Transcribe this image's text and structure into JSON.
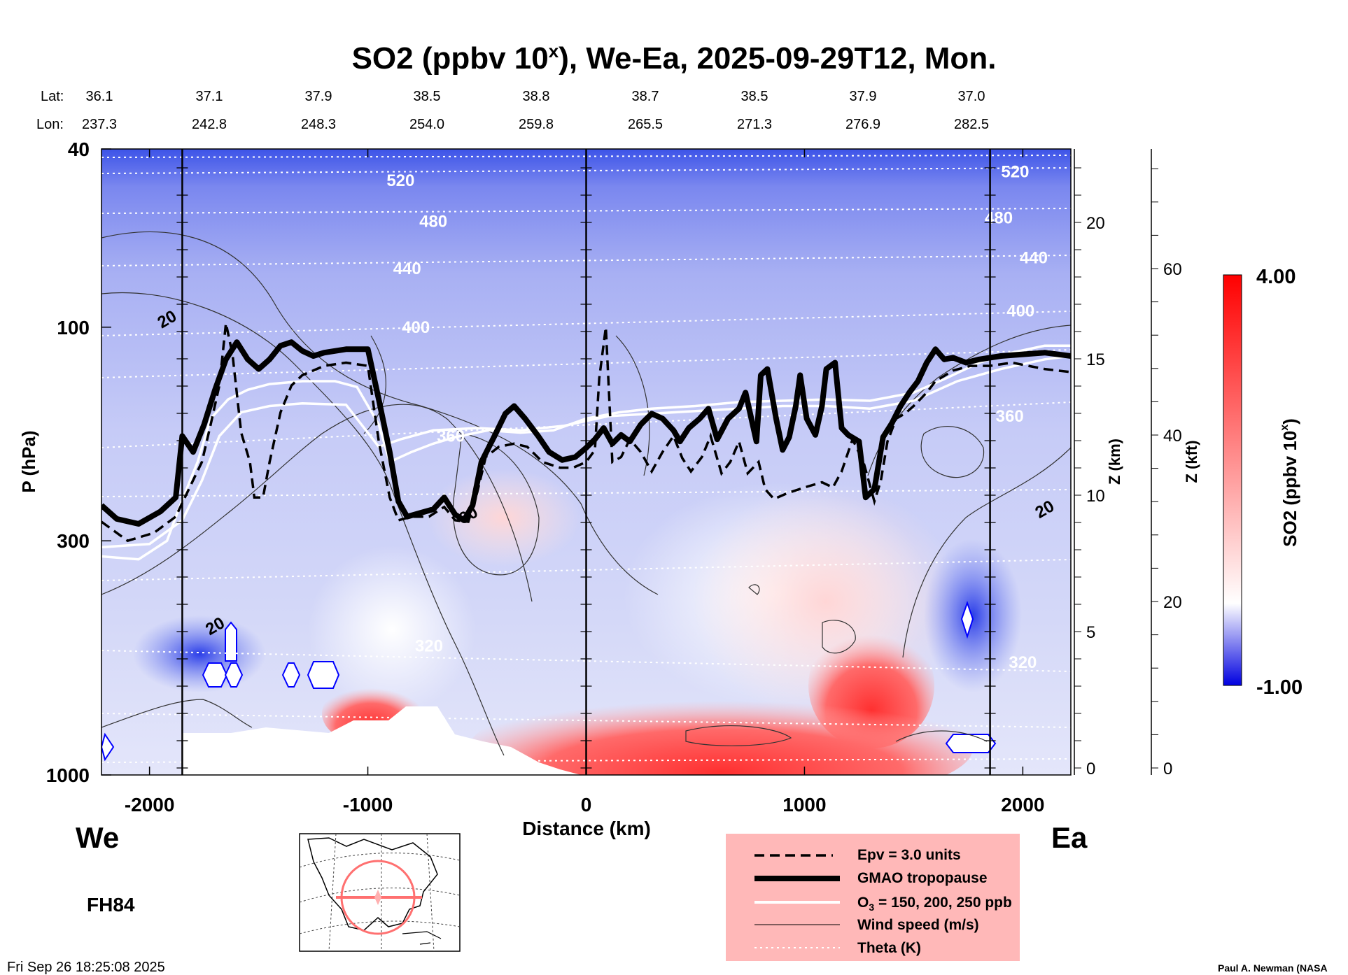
{
  "chart_data": {
    "type": "heatmap",
    "title": "SO2 (ppbv 10",
    "title_sup": "x",
    "title_rest": "), We-Ea, 2025-09-29T12, Mon.",
    "lat_label": "Lat:",
    "lon_label": "Lon:",
    "lat_values": [
      "36.1",
      "37.1",
      "37.9",
      "38.5",
      "38.8",
      "38.7",
      "38.5",
      "37.9",
      "37.0"
    ],
    "lon_values": [
      "237.3",
      "242.8",
      "248.3",
      "254.0",
      "259.8",
      "265.5",
      "271.3",
      "276.9",
      "282.5"
    ],
    "xlabel": "Distance (km)",
    "xlim": [
      -2220,
      2220
    ],
    "x_ticks": [
      -2000,
      -1000,
      0,
      1000,
      2000
    ],
    "x_tick_labels": [
      "-2000",
      "-1000",
      "0",
      "1000",
      "2000"
    ],
    "ylabel": "P (hPa)",
    "y_scale": "log",
    "ylim": [
      1000,
      40
    ],
    "y_ticks": [
      40,
      100,
      300,
      1000
    ],
    "y_tick_labels": [
      "40",
      "100",
      "300",
      "1000"
    ],
    "z_km_label": "Z (km)",
    "z_km_ticks": [
      0,
      5,
      10,
      15,
      20
    ],
    "z_km_tick_labels": [
      "0",
      "5",
      "10",
      "15",
      "20"
    ],
    "z_kft_label": "Z (kft)",
    "z_kft_ticks": [
      0,
      20,
      40,
      60
    ],
    "z_kft_tick_labels": [
      "0",
      "20",
      "40",
      "60"
    ],
    "colorbar_label": "SO2 (ppbv 10",
    "colorbar_label_sup": "x",
    "colorbar_label_rest": ")",
    "colorbar_range": [
      -1.0,
      4.0
    ],
    "colorbar_max_label": "4.00",
    "colorbar_min_label": "-1.00",
    "colormap": [
      "#0000e0",
      "#ffffff",
      "#ff0000"
    ],
    "vertical_lines_km": [
      -1850,
      0,
      1850
    ],
    "theta_labels": [
      {
        "text": "520",
        "km": -850,
        "hpa": 47
      },
      {
        "text": "480",
        "km": -700,
        "hpa": 58
      },
      {
        "text": "440",
        "km": -820,
        "hpa": 74
      },
      {
        "text": "400",
        "km": -780,
        "hpa": 100
      },
      {
        "text": "360",
        "km": -620,
        "hpa": 175
      },
      {
        "text": "320",
        "km": -720,
        "hpa": 515
      },
      {
        "text": "520",
        "km": 1965,
        "hpa": 45
      },
      {
        "text": "480",
        "km": 1890,
        "hpa": 57
      },
      {
        "text": "440",
        "km": 2050,
        "hpa": 70
      },
      {
        "text": "400",
        "km": 1990,
        "hpa": 92
      },
      {
        "text": "360",
        "km": 1940,
        "hpa": 158
      },
      {
        "text": "320",
        "km": 2000,
        "hpa": 560
      }
    ],
    "wind_labels": [
      {
        "text": "20",
        "km": -1920,
        "hpa": 96
      },
      {
        "text": "20",
        "km": -1700,
        "hpa": 465
      },
      {
        "text": "60",
        "km": -540,
        "hpa": 263
      },
      {
        "text": "20",
        "km": 2100,
        "hpa": 255
      }
    ],
    "tropopause_gmao": [
      [
        -2220,
        250
      ],
      [
        -2150,
        268
      ],
      [
        -2050,
        275
      ],
      [
        -1950,
        258
      ],
      [
        -1880,
        240
      ],
      [
        -1850,
        175
      ],
      [
        -1800,
        190
      ],
      [
        -1750,
        165
      ],
      [
        -1700,
        138
      ],
      [
        -1650,
        118
      ],
      [
        -1600,
        108
      ],
      [
        -1550,
        118
      ],
      [
        -1500,
        124
      ],
      [
        -1450,
        118
      ],
      [
        -1400,
        110
      ],
      [
        -1350,
        108
      ],
      [
        -1300,
        113
      ],
      [
        -1250,
        116
      ],
      [
        -1200,
        114
      ],
      [
        -1100,
        112
      ],
      [
        -1000,
        112
      ],
      [
        -950,
        145
      ],
      [
        -900,
        190
      ],
      [
        -860,
        245
      ],
      [
        -820,
        265
      ],
      [
        -760,
        260
      ],
      [
        -700,
        255
      ],
      [
        -650,
        240
      ],
      [
        -600,
        262
      ],
      [
        -560,
        270
      ],
      [
        -520,
        250
      ],
      [
        -480,
        200
      ],
      [
        -420,
        175
      ],
      [
        -370,
        156
      ],
      [
        -330,
        150
      ],
      [
        -280,
        160
      ],
      [
        -220,
        175
      ],
      [
        -170,
        190
      ],
      [
        -110,
        198
      ],
      [
        -50,
        195
      ],
      [
        0,
        186
      ],
      [
        40,
        178
      ],
      [
        80,
        168
      ],
      [
        120,
        182
      ],
      [
        160,
        174
      ],
      [
        200,
        180
      ],
      [
        250,
        165
      ],
      [
        300,
        156
      ],
      [
        350,
        160
      ],
      [
        400,
        170
      ],
      [
        430,
        180
      ],
      [
        470,
        168
      ],
      [
        520,
        160
      ],
      [
        560,
        152
      ],
      [
        600,
        178
      ],
      [
        650,
        160
      ],
      [
        700,
        152
      ],
      [
        730,
        140
      ],
      [
        780,
        180
      ],
      [
        800,
        128
      ],
      [
        830,
        124
      ],
      [
        870,
        160
      ],
      [
        900,
        188
      ],
      [
        930,
        176
      ],
      [
        960,
        150
      ],
      [
        980,
        128
      ],
      [
        1010,
        160
      ],
      [
        1050,
        174
      ],
      [
        1080,
        150
      ],
      [
        1100,
        124
      ],
      [
        1140,
        120
      ],
      [
        1170,
        168
      ],
      [
        1200,
        174
      ],
      [
        1250,
        180
      ],
      [
        1280,
        240
      ],
      [
        1320,
        230
      ],
      [
        1360,
        176
      ],
      [
        1400,
        164
      ],
      [
        1440,
        150
      ],
      [
        1480,
        140
      ],
      [
        1520,
        132
      ],
      [
        1560,
        120
      ],
      [
        1600,
        112
      ],
      [
        1640,
        118
      ],
      [
        1680,
        117
      ],
      [
        1740,
        120
      ],
      [
        1800,
        118
      ],
      [
        1900,
        116
      ],
      [
        2000,
        115
      ],
      [
        2100,
        114
      ],
      [
        2220,
        116
      ]
    ],
    "epv_3": [
      [
        -2220,
        272
      ],
      [
        -2100,
        300
      ],
      [
        -1980,
        288
      ],
      [
        -1880,
        265
      ],
      [
        -1820,
        230
      ],
      [
        -1760,
        200
      ],
      [
        -1720,
        165
      ],
      [
        -1680,
        135
      ],
      [
        -1650,
        98
      ],
      [
        -1620,
        115
      ],
      [
        -1580,
        172
      ],
      [
        -1540,
        200
      ],
      [
        -1520,
        240
      ],
      [
        -1480,
        240
      ],
      [
        -1450,
        200
      ],
      [
        -1400,
        155
      ],
      [
        -1350,
        135
      ],
      [
        -1300,
        128
      ],
      [
        -1200,
        122
      ],
      [
        -1100,
        120
      ],
      [
        -1000,
        122
      ],
      [
        -950,
        180
      ],
      [
        -900,
        240
      ],
      [
        -860,
        270
      ],
      [
        -800,
        265
      ],
      [
        -720,
        265
      ],
      [
        -650,
        252
      ],
      [
        -600,
        270
      ],
      [
        -540,
        272
      ],
      [
        -500,
        235
      ],
      [
        -460,
        195
      ],
      [
        -400,
        185
      ],
      [
        -330,
        182
      ],
      [
        -270,
        185
      ],
      [
        -200,
        200
      ],
      [
        -120,
        206
      ],
      [
        -60,
        206
      ],
      [
        0,
        200
      ],
      [
        40,
        188
      ],
      [
        60,
        130
      ],
      [
        90,
        100
      ],
      [
        120,
        200
      ],
      [
        160,
        195
      ],
      [
        200,
        178
      ],
      [
        250,
        190
      ],
      [
        300,
        210
      ],
      [
        350,
        190
      ],
      [
        400,
        175
      ],
      [
        440,
        196
      ],
      [
        480,
        210
      ],
      [
        530,
        195
      ],
      [
        570,
        175
      ],
      [
        620,
        212
      ],
      [
        660,
        200
      ],
      [
        700,
        180
      ],
      [
        740,
        212
      ],
      [
        790,
        200
      ],
      [
        820,
        230
      ],
      [
        860,
        242
      ],
      [
        920,
        235
      ],
      [
        1000,
        228
      ],
      [
        1080,
        222
      ],
      [
        1130,
        228
      ],
      [
        1170,
        210
      ],
      [
        1220,
        178
      ],
      [
        1270,
        200
      ],
      [
        1320,
        245
      ],
      [
        1350,
        220
      ],
      [
        1380,
        180
      ],
      [
        1420,
        160
      ],
      [
        1460,
        156
      ],
      [
        1500,
        150
      ],
      [
        1560,
        140
      ],
      [
        1600,
        132
      ],
      [
        1680,
        125
      ],
      [
        1760,
        122
      ],
      [
        1850,
        122
      ],
      [
        1950,
        120
      ],
      [
        2100,
        124
      ],
      [
        2220,
        126
      ]
    ],
    "ozone_contours": [
      [
        [
          -2220,
          325
        ],
        [
          -2050,
          330
        ],
        [
          -1920,
          300
        ],
        [
          -1860,
          250
        ],
        [
          -1780,
          200
        ],
        [
          -1720,
          160
        ],
        [
          -1640,
          145
        ],
        [
          -1550,
          138
        ],
        [
          -1450,
          134
        ],
        [
          -1300,
          132
        ],
        [
          -1150,
          132
        ],
        [
          -1050,
          136
        ],
        [
          -950,
          165
        ],
        [
          -900,
          200
        ],
        [
          -800,
          190
        ],
        [
          -700,
          182
        ],
        [
          -600,
          176
        ],
        [
          -450,
          170
        ],
        [
          -300,
          172
        ],
        [
          -150,
          170
        ],
        [
          0,
          160
        ],
        [
          150,
          155
        ],
        [
          300,
          152
        ],
        [
          500,
          150
        ],
        [
          700,
          147
        ],
        [
          900,
          146
        ],
        [
          1100,
          145
        ],
        [
          1300,
          146
        ],
        [
          1500,
          140
        ],
        [
          1650,
          130
        ],
        [
          1800,
          120
        ],
        [
          1950,
          114
        ],
        [
          2100,
          110
        ],
        [
          2220,
          110
        ]
      ],
      [
        [
          -2220,
          310
        ],
        [
          -2000,
          305
        ],
        [
          -1850,
          270
        ],
        [
          -1760,
          220
        ],
        [
          -1680,
          175
        ],
        [
          -1580,
          155
        ],
        [
          -1450,
          150
        ],
        [
          -1300,
          148
        ],
        [
          -1100,
          149
        ],
        [
          -950,
          185
        ],
        [
          -850,
          178
        ],
        [
          -700,
          170
        ],
        [
          -500,
          168
        ],
        [
          -300,
          170
        ],
        [
          -100,
          166
        ],
        [
          100,
          158
        ],
        [
          300,
          156
        ],
        [
          500,
          154
        ],
        [
          700,
          152
        ],
        [
          900,
          150
        ],
        [
          1100,
          150
        ],
        [
          1300,
          152
        ],
        [
          1500,
          146
        ],
        [
          1700,
          132
        ],
        [
          1900,
          124
        ],
        [
          2100,
          118
        ],
        [
          2220,
          116
        ]
      ]
    ]
  }
}
